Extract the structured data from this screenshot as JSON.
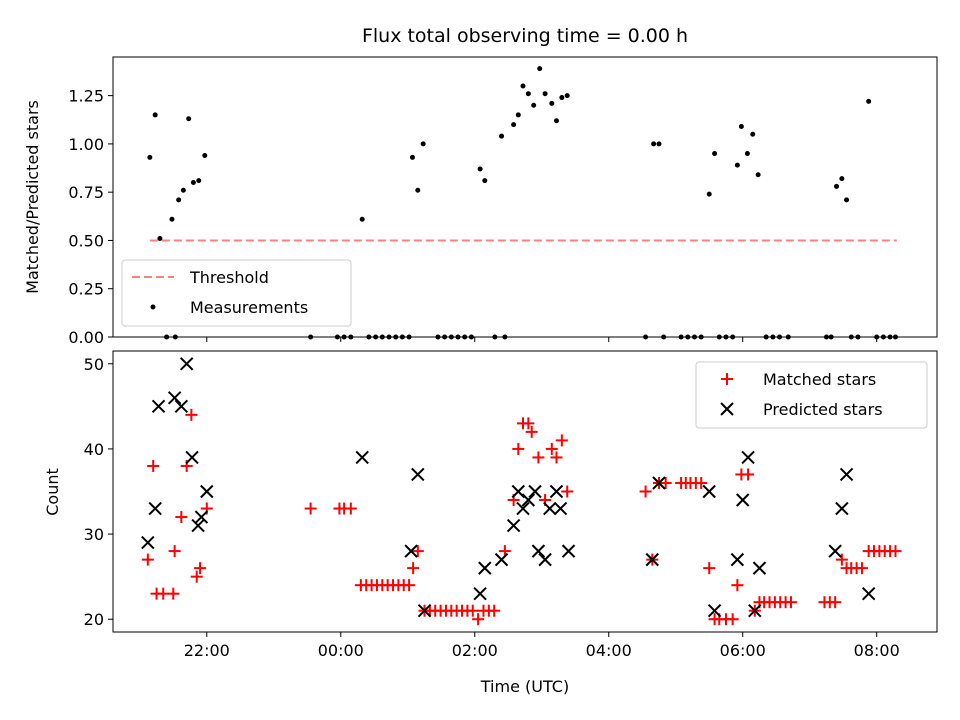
{
  "chart_data": [
    {
      "type": "scatter",
      "title": "Flux total observing time = 0.00 h",
      "ylabel": "Matched/Predicted stars",
      "xlim": [
        -3.4,
        8.9
      ],
      "ylim": [
        0,
        1.45
      ],
      "yticks": [
        "0.00",
        "0.25",
        "0.50",
        "0.75",
        "1.00",
        "1.25"
      ],
      "ytick_values": [
        0,
        0.25,
        0.5,
        0.75,
        1.0,
        1.25
      ],
      "threshold": {
        "name": "Threshold",
        "y": 0.5,
        "x_range": [
          -2.85,
          8.3
        ],
        "color": "#ff7f7f"
      },
      "series": [
        {
          "name": "Measurements",
          "color": "#000000",
          "points": [
            [
              -2.85,
              0.93
            ],
            [
              -2.77,
              1.15
            ],
            [
              -2.7,
              0.51
            ],
            [
              -2.6,
              0.0
            ],
            [
              -2.47,
              0.0
            ],
            [
              -2.52,
              0.61
            ],
            [
              -2.42,
              0.71
            ],
            [
              -2.35,
              0.76
            ],
            [
              -2.27,
              1.13
            ],
            [
              -2.2,
              0.8
            ],
            [
              -2.12,
              0.81
            ],
            [
              -2.03,
              0.94
            ],
            [
              -0.45,
              0.0
            ],
            [
              -0.05,
              0.0
            ],
            [
              0.05,
              0.0
            ],
            [
              0.15,
              0.0
            ],
            [
              0.32,
              0.61
            ],
            [
              0.42,
              0.0
            ],
            [
              0.52,
              0.0
            ],
            [
              0.62,
              0.0
            ],
            [
              0.72,
              0.0
            ],
            [
              0.82,
              0.0
            ],
            [
              0.92,
              0.0
            ],
            [
              1.02,
              0.0
            ],
            [
              1.07,
              0.93
            ],
            [
              1.15,
              0.76
            ],
            [
              1.23,
              1.0
            ],
            [
              1.45,
              0.0
            ],
            [
              1.55,
              0.0
            ],
            [
              1.65,
              0.0
            ],
            [
              1.75,
              0.0
            ],
            [
              1.85,
              0.0
            ],
            [
              1.95,
              0.0
            ],
            [
              2.08,
              0.87
            ],
            [
              2.15,
              0.81
            ],
            [
              2.3,
              0.0
            ],
            [
              2.45,
              0.0
            ],
            [
              2.4,
              1.04
            ],
            [
              2.58,
              1.1
            ],
            [
              2.65,
              1.15
            ],
            [
              2.72,
              1.3
            ],
            [
              2.8,
              1.26
            ],
            [
              2.88,
              1.2
            ],
            [
              2.97,
              1.39
            ],
            [
              3.05,
              1.26
            ],
            [
              3.15,
              1.21
            ],
            [
              3.22,
              1.12
            ],
            [
              3.3,
              1.24
            ],
            [
              3.38,
              1.25
            ],
            [
              4.55,
              0.0
            ],
            [
              4.67,
              1.0
            ],
            [
              4.75,
              1.0
            ],
            [
              4.82,
              0.0
            ],
            [
              5.08,
              0.0
            ],
            [
              5.18,
              0.0
            ],
            [
              5.28,
              0.0
            ],
            [
              5.38,
              0.0
            ],
            [
              5.5,
              0.74
            ],
            [
              5.58,
              0.95
            ],
            [
              5.65,
              0.0
            ],
            [
              5.75,
              0.0
            ],
            [
              5.85,
              0.0
            ],
            [
              5.92,
              0.89
            ],
            [
              5.98,
              1.09
            ],
            [
              6.07,
              0.95
            ],
            [
              6.15,
              1.05
            ],
            [
              6.23,
              0.84
            ],
            [
              6.35,
              0.0
            ],
            [
              6.45,
              0.0
            ],
            [
              6.55,
              0.0
            ],
            [
              6.68,
              0.0
            ],
            [
              7.25,
              0.0
            ],
            [
              7.32,
              0.0
            ],
            [
              7.4,
              0.78
            ],
            [
              7.48,
              0.82
            ],
            [
              7.55,
              0.71
            ],
            [
              7.62,
              0.0
            ],
            [
              7.72,
              0.0
            ],
            [
              7.88,
              1.22
            ],
            [
              8.0,
              0.0
            ],
            [
              8.1,
              0.0
            ],
            [
              8.2,
              0.0
            ],
            [
              8.28,
              0.0
            ]
          ]
        }
      ],
      "legend": {
        "position": "lower-left",
        "entries": [
          "Threshold",
          "Measurements"
        ]
      }
    },
    {
      "type": "scatter",
      "xlabel": "Time (UTC)",
      "ylabel": "Count",
      "xlim": [
        -3.4,
        8.9
      ],
      "ylim": [
        18.5,
        51.5
      ],
      "xticks": [
        "22:00",
        "00:00",
        "02:00",
        "04:00",
        "06:00",
        "08:00"
      ],
      "xtick_values": [
        -2,
        0,
        2,
        4,
        6,
        8
      ],
      "yticks": [
        "20",
        "30",
        "40",
        "50"
      ],
      "ytick_values": [
        20,
        30,
        40,
        50
      ],
      "series": [
        {
          "name": "Matched stars",
          "marker": "plus",
          "color": "#ff0000",
          "points": [
            [
              -2.88,
              27
            ],
            [
              -2.8,
              38
            ],
            [
              -2.75,
              23
            ],
            [
              -2.65,
              23
            ],
            [
              -2.5,
              23
            ],
            [
              -2.48,
              28
            ],
            [
              -2.38,
              32
            ],
            [
              -2.3,
              38
            ],
            [
              -2.23,
              44
            ],
            [
              -2.15,
              25
            ],
            [
              -2.1,
              26
            ],
            [
              -2.0,
              33
            ],
            [
              -0.45,
              33
            ],
            [
              -0.02,
              33
            ],
            [
              0.05,
              33
            ],
            [
              0.15,
              33
            ],
            [
              0.3,
              24
            ],
            [
              0.38,
              24
            ],
            [
              0.46,
              24
            ],
            [
              0.54,
              24
            ],
            [
              0.62,
              24
            ],
            [
              0.7,
              24
            ],
            [
              0.78,
              24
            ],
            [
              0.86,
              24
            ],
            [
              0.94,
              24
            ],
            [
              1.02,
              24
            ],
            [
              1.08,
              26
            ],
            [
              1.15,
              28
            ],
            [
              1.25,
              21
            ],
            [
              1.33,
              21
            ],
            [
              1.41,
              21
            ],
            [
              1.49,
              21
            ],
            [
              1.57,
              21
            ],
            [
              1.65,
              21
            ],
            [
              1.73,
              21
            ],
            [
              1.81,
              21
            ],
            [
              1.89,
              21
            ],
            [
              1.97,
              21
            ],
            [
              2.05,
              20
            ],
            [
              2.13,
              21
            ],
            [
              2.21,
              21
            ],
            [
              2.29,
              21
            ],
            [
              2.45,
              28
            ],
            [
              2.58,
              34
            ],
            [
              2.65,
              40
            ],
            [
              2.72,
              43
            ],
            [
              2.8,
              43
            ],
            [
              2.85,
              42
            ],
            [
              2.95,
              39
            ],
            [
              3.05,
              34
            ],
            [
              3.15,
              40
            ],
            [
              3.22,
              39
            ],
            [
              3.3,
              41
            ],
            [
              3.38,
              35
            ],
            [
              4.55,
              35
            ],
            [
              4.65,
              27
            ],
            [
              4.75,
              36
            ],
            [
              4.85,
              36
            ],
            [
              5.08,
              36
            ],
            [
              5.15,
              36
            ],
            [
              5.22,
              36
            ],
            [
              5.3,
              36
            ],
            [
              5.38,
              36
            ],
            [
              5.5,
              26
            ],
            [
              5.58,
              20
            ],
            [
              5.65,
              20
            ],
            [
              5.75,
              20
            ],
            [
              5.85,
              20
            ],
            [
              5.92,
              24
            ],
            [
              5.98,
              37
            ],
            [
              6.08,
              37
            ],
            [
              6.18,
              21
            ],
            [
              6.25,
              22
            ],
            [
              6.32,
              22
            ],
            [
              6.4,
              22
            ],
            [
              6.48,
              22
            ],
            [
              6.56,
              22
            ],
            [
              6.64,
              22
            ],
            [
              6.72,
              22
            ],
            [
              7.22,
              22
            ],
            [
              7.3,
              22
            ],
            [
              7.38,
              22
            ],
            [
              7.48,
              27
            ],
            [
              7.55,
              26
            ],
            [
              7.62,
              26
            ],
            [
              7.7,
              26
            ],
            [
              7.78,
              26
            ],
            [
              7.88,
              28
            ],
            [
              7.96,
              28
            ],
            [
              8.04,
              28
            ],
            [
              8.12,
              28
            ],
            [
              8.2,
              28
            ],
            [
              8.28,
              28
            ]
          ]
        },
        {
          "name": "Predicted stars",
          "marker": "x",
          "color": "#000000",
          "points": [
            [
              -2.88,
              29
            ],
            [
              -2.77,
              33
            ],
            [
              -2.72,
              45
            ],
            [
              -2.48,
              46
            ],
            [
              -2.38,
              45
            ],
            [
              -2.3,
              50
            ],
            [
              -2.22,
              39
            ],
            [
              -2.13,
              31
            ],
            [
              -2.08,
              32
            ],
            [
              -2.0,
              35
            ],
            [
              0.32,
              39
            ],
            [
              1.05,
              28
            ],
            [
              1.15,
              37
            ],
            [
              1.25,
              21
            ],
            [
              2.08,
              23
            ],
            [
              2.15,
              26
            ],
            [
              2.4,
              27
            ],
            [
              2.58,
              31
            ],
            [
              2.65,
              35
            ],
            [
              2.72,
              33
            ],
            [
              2.8,
              34
            ],
            [
              2.9,
              35
            ],
            [
              2.95,
              28
            ],
            [
              3.05,
              27
            ],
            [
              3.12,
              33
            ],
            [
              3.22,
              35
            ],
            [
              3.28,
              33
            ],
            [
              3.4,
              28
            ],
            [
              4.65,
              27
            ],
            [
              4.75,
              36
            ],
            [
              5.5,
              35
            ],
            [
              5.58,
              21
            ],
            [
              5.92,
              27
            ],
            [
              6.0,
              34
            ],
            [
              6.08,
              39
            ],
            [
              6.18,
              21
            ],
            [
              6.25,
              26
            ],
            [
              7.38,
              28
            ],
            [
              7.48,
              33
            ],
            [
              7.55,
              37
            ],
            [
              7.88,
              23
            ]
          ]
        }
      ],
      "legend": {
        "position": "upper-right",
        "entries": [
          "Matched stars",
          "Predicted stars"
        ]
      }
    }
  ]
}
